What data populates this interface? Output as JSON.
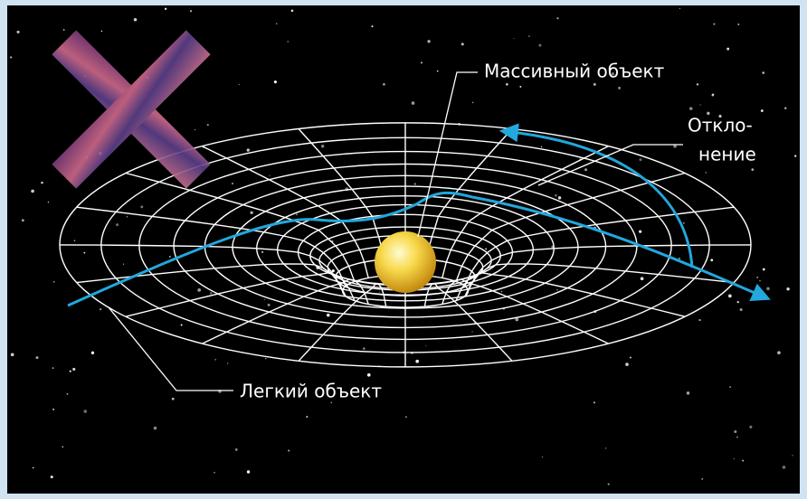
{
  "labels": {
    "massive_object": "Массивный объект",
    "deflection": [
      "Откло-",
      "нение"
    ],
    "light_object": "Легкий объект"
  }
}
